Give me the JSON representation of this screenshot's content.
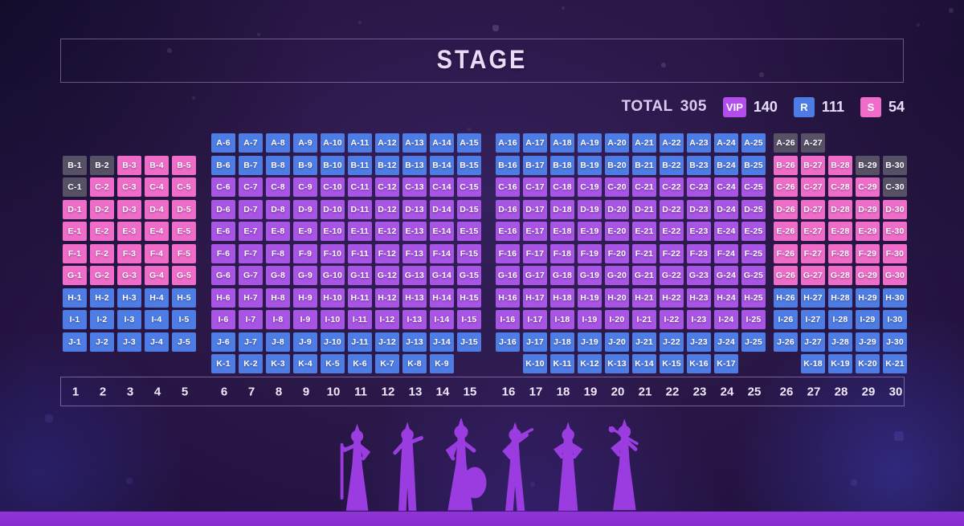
{
  "stage": {
    "title": "STAGE"
  },
  "legend": {
    "total_label": "TOTAL",
    "total_value": "305",
    "classes": [
      {
        "code": "VIP",
        "count": "140",
        "color": "#b24ced"
      },
      {
        "code": "R",
        "count": "111",
        "color": "#4d7de4"
      },
      {
        "code": "S",
        "count": "54",
        "color": "#ef6dc9"
      }
    ]
  },
  "seat_types": {
    "VIP": {
      "color": "#a854e4"
    },
    "R": {
      "color": "#4d7de4"
    },
    "S": {
      "color": "#ef6dc9"
    },
    "NA": {
      "color": "#575166"
    }
  },
  "seat_map": {
    "rows": [
      "A",
      "B",
      "C",
      "D",
      "E",
      "F",
      "G",
      "H",
      "I",
      "J",
      "K"
    ],
    "segments": [
      {
        "row": "A",
        "start": 6,
        "end": 15,
        "type": "R"
      },
      {
        "row": "A",
        "start": 16,
        "end": 25,
        "type": "R"
      },
      {
        "row": "A",
        "start": 26,
        "end": 27,
        "type": "NA"
      },
      {
        "row": "B",
        "start": 1,
        "end": 2,
        "type": "NA"
      },
      {
        "row": "B",
        "start": 3,
        "end": 5,
        "type": "S"
      },
      {
        "row": "B",
        "start": 6,
        "end": 15,
        "type": "R"
      },
      {
        "row": "B",
        "start": 16,
        "end": 25,
        "type": "R"
      },
      {
        "row": "B",
        "start": 26,
        "end": 28,
        "type": "S"
      },
      {
        "row": "B",
        "start": 29,
        "end": 30,
        "type": "NA"
      },
      {
        "row": "C",
        "start": 1,
        "end": 1,
        "type": "NA"
      },
      {
        "row": "C",
        "start": 2,
        "end": 5,
        "type": "S"
      },
      {
        "row": "C",
        "start": 6,
        "end": 15,
        "type": "VIP"
      },
      {
        "row": "C",
        "start": 16,
        "end": 25,
        "type": "VIP"
      },
      {
        "row": "C",
        "start": 26,
        "end": 29,
        "type": "S"
      },
      {
        "row": "C",
        "start": 30,
        "end": 30,
        "type": "NA"
      },
      {
        "row": "D",
        "start": 1,
        "end": 5,
        "type": "S"
      },
      {
        "row": "D",
        "start": 6,
        "end": 15,
        "type": "VIP"
      },
      {
        "row": "D",
        "start": 16,
        "end": 25,
        "type": "VIP"
      },
      {
        "row": "D",
        "start": 26,
        "end": 30,
        "type": "S"
      },
      {
        "row": "E",
        "start": 1,
        "end": 5,
        "type": "S"
      },
      {
        "row": "E",
        "start": 6,
        "end": 15,
        "type": "VIP"
      },
      {
        "row": "E",
        "start": 16,
        "end": 25,
        "type": "VIP"
      },
      {
        "row": "E",
        "start": 26,
        "end": 30,
        "type": "S"
      },
      {
        "row": "F",
        "start": 1,
        "end": 5,
        "type": "S"
      },
      {
        "row": "F",
        "start": 6,
        "end": 15,
        "type": "VIP"
      },
      {
        "row": "F",
        "start": 16,
        "end": 25,
        "type": "VIP"
      },
      {
        "row": "F",
        "start": 26,
        "end": 30,
        "type": "S"
      },
      {
        "row": "G",
        "start": 1,
        "end": 5,
        "type": "S"
      },
      {
        "row": "G",
        "start": 6,
        "end": 15,
        "type": "VIP"
      },
      {
        "row": "G",
        "start": 16,
        "end": 25,
        "type": "VIP"
      },
      {
        "row": "G",
        "start": 26,
        "end": 30,
        "type": "S"
      },
      {
        "row": "H",
        "start": 1,
        "end": 5,
        "type": "R"
      },
      {
        "row": "H",
        "start": 6,
        "end": 15,
        "type": "VIP"
      },
      {
        "row": "H",
        "start": 16,
        "end": 25,
        "type": "VIP"
      },
      {
        "row": "H",
        "start": 26,
        "end": 30,
        "type": "R"
      },
      {
        "row": "I",
        "start": 1,
        "end": 5,
        "type": "R"
      },
      {
        "row": "I",
        "start": 6,
        "end": 15,
        "type": "VIP"
      },
      {
        "row": "I",
        "start": 16,
        "end": 25,
        "type": "VIP"
      },
      {
        "row": "I",
        "start": 26,
        "end": 30,
        "type": "R"
      },
      {
        "row": "J",
        "start": 1,
        "end": 5,
        "type": "R"
      },
      {
        "row": "J",
        "start": 6,
        "end": 15,
        "type": "R"
      },
      {
        "row": "J",
        "start": 16,
        "end": 25,
        "type": "R"
      },
      {
        "row": "J",
        "start": 26,
        "end": 30,
        "type": "R"
      },
      {
        "row": "K",
        "start": 1,
        "end": 9,
        "col": 6,
        "type": "R"
      },
      {
        "row": "K",
        "start": 10,
        "end": 17,
        "col": 17,
        "type": "R"
      },
      {
        "row": "K",
        "start": 18,
        "end": 21,
        "col": 27,
        "type": "R"
      }
    ]
  },
  "columns": [
    "1",
    "2",
    "3",
    "4",
    "5",
    "6",
    "7",
    "8",
    "9",
    "10",
    "11",
    "12",
    "13",
    "14",
    "15",
    "16",
    "17",
    "18",
    "19",
    "20",
    "21",
    "22",
    "23",
    "24",
    "25",
    "26",
    "27",
    "28",
    "29",
    "30"
  ]
}
